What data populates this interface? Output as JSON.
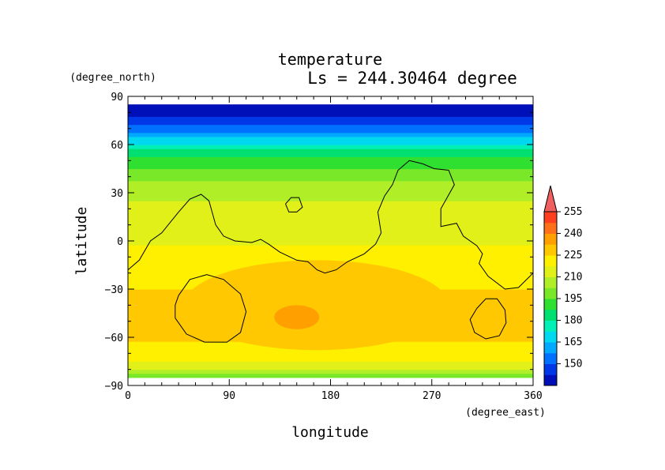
{
  "chart_data": {
    "type": "heatmap",
    "title": "temperature",
    "subtitle": "Ls = 244.30464 degree",
    "xlabel": "longitude",
    "ylabel": "latitude",
    "x_units": "(degree_east)",
    "y_units": "(degree_north)",
    "xlim": [
      0,
      360
    ],
    "ylim": [
      -90,
      90
    ],
    "x_ticks": [
      0,
      90,
      180,
      270,
      360
    ],
    "y_ticks": [
      90,
      60,
      30,
      0,
      -30,
      -60,
      -90
    ],
    "x_tick_labels": [
      "0",
      "90",
      "180",
      "270",
      "360"
    ],
    "y_tick_labels": [
      "90",
      "60",
      "30",
      "0",
      "−30",
      "−60",
      "−90"
    ],
    "data_lat_range": [
      -85,
      85
    ],
    "levels": [
      135,
      142.5,
      150,
      157.5,
      165,
      172.5,
      180,
      187.5,
      195,
      202.5,
      210,
      217.5,
      225,
      232.5,
      240,
      247.5,
      255,
      262.5
    ],
    "level_colors": [
      "#0010b8",
      "#0038e8",
      "#0070ff",
      "#00a8ff",
      "#00d8f0",
      "#00f0b8",
      "#00e070",
      "#30e030",
      "#78e828",
      "#b0ee28",
      "#e0f018",
      "#fff000",
      "#ffc800",
      "#ffa000",
      "#ff7018",
      "#ff4020",
      "#f06060"
    ],
    "colorbar_tick_labels": [
      "150",
      "165",
      "180",
      "195",
      "210",
      "225",
      "240",
      "255"
    ],
    "colorbar_extend": "max",
    "latitude_profile": [
      {
        "lat": -85,
        "value": 200
      },
      {
        "lat": -80,
        "value": 208
      },
      {
        "lat": -75,
        "value": 216
      },
      {
        "lat": -70,
        "value": 222
      },
      {
        "lat": -60,
        "value": 226
      },
      {
        "lat": -50,
        "value": 229
      },
      {
        "lat": -40,
        "value": 228
      },
      {
        "lat": -30,
        "value": 225
      },
      {
        "lat": -20,
        "value": 222
      },
      {
        "lat": -10,
        "value": 220
      },
      {
        "lat": 0,
        "value": 217
      },
      {
        "lat": 10,
        "value": 215
      },
      {
        "lat": 20,
        "value": 213
      },
      {
        "lat": 30,
        "value": 208
      },
      {
        "lat": 40,
        "value": 200
      },
      {
        "lat": 50,
        "value": 190
      },
      {
        "lat": 60,
        "value": 175
      },
      {
        "lat": 65,
        "value": 163
      },
      {
        "lat": 70,
        "value": 155
      },
      {
        "lat": 75,
        "value": 147
      },
      {
        "lat": 80,
        "value": 140
      },
      {
        "lat": 85,
        "value": 138
      }
    ],
    "warm_region": {
      "lon": [
        50,
        285
      ],
      "lat": [
        -68,
        -12
      ],
      "value": 228
    },
    "hot_spot": {
      "lon": [
        130,
        170
      ],
      "lat": [
        -55,
        -40
      ],
      "value": 236
    },
    "contours": [
      [
        [
          0,
          -18
        ],
        [
          10,
          -12
        ],
        [
          20,
          0
        ],
        [
          30,
          5
        ],
        [
          45,
          18
        ],
        [
          55,
          26
        ],
        [
          65,
          29
        ],
        [
          72,
          25
        ],
        [
          78,
          10
        ],
        [
          85,
          3
        ],
        [
          95,
          0
        ],
        [
          110,
          -1
        ],
        [
          118,
          1
        ],
        [
          125,
          -2
        ],
        [
          135,
          -7
        ],
        [
          150,
          -12
        ],
        [
          160,
          -13
        ],
        [
          168,
          -18
        ],
        [
          175,
          -20
        ],
        [
          185,
          -18
        ],
        [
          195,
          -13
        ],
        [
          210,
          -8
        ],
        [
          220,
          -2
        ],
        [
          225,
          5
        ],
        [
          222,
          18
        ],
        [
          228,
          28
        ],
        [
          235,
          35
        ],
        [
          240,
          44
        ],
        [
          250,
          50
        ],
        [
          262,
          48
        ],
        [
          272,
          45
        ],
        [
          285,
          44
        ],
        [
          290,
          35
        ],
        [
          278,
          20
        ],
        [
          278,
          9
        ],
        [
          292,
          11
        ],
        [
          298,
          3
        ],
        [
          310,
          -3
        ],
        [
          315,
          -8
        ],
        [
          312,
          -14
        ],
        [
          320,
          -22
        ],
        [
          335,
          -30
        ],
        [
          347,
          -29
        ],
        [
          360,
          -20
        ]
      ],
      [
        [
          140,
          23
        ],
        [
          145,
          27
        ],
        [
          152,
          27
        ],
        [
          155,
          21
        ],
        [
          150,
          18
        ],
        [
          143,
          18
        ],
        [
          140,
          23
        ]
      ],
      [
        [
          45,
          -34
        ],
        [
          55,
          -24
        ],
        [
          70,
          -21
        ],
        [
          85,
          -24
        ],
        [
          100,
          -33
        ],
        [
          105,
          -44
        ],
        [
          100,
          -57
        ],
        [
          88,
          -63
        ],
        [
          68,
          -63
        ],
        [
          52,
          -58
        ],
        [
          42,
          -48
        ],
        [
          42,
          -40
        ],
        [
          45,
          -34
        ]
      ],
      [
        [
          310,
          -42
        ],
        [
          318,
          -36
        ],
        [
          328,
          -36
        ],
        [
          335,
          -43
        ],
        [
          336,
          -51
        ],
        [
          330,
          -59
        ],
        [
          318,
          -61
        ],
        [
          308,
          -57
        ],
        [
          304,
          -49
        ],
        [
          310,
          -42
        ]
      ]
    ]
  }
}
